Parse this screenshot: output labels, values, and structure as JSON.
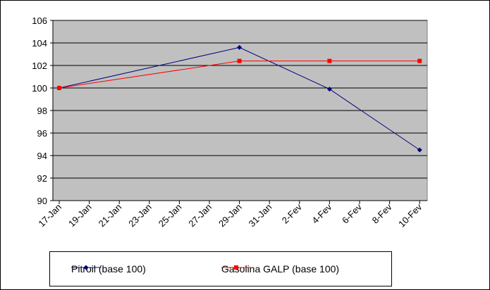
{
  "chart_data": {
    "type": "line",
    "title": "",
    "xlabel": "",
    "ylabel": "",
    "x_ticks": [
      "17-Jan",
      "19-Jan",
      "21-Jan",
      "23-Jan",
      "25-Jan",
      "27-Jan",
      "29-Jan",
      "31-Jan",
      "2-Fev",
      "4-Fev",
      "6-Fev",
      "8-Fev",
      "10-Fev"
    ],
    "y_ticks": [
      "90",
      "92",
      "94",
      "96",
      "98",
      "100",
      "102",
      "104",
      "106"
    ],
    "ylim": [
      90,
      106
    ],
    "grid": "horizontal",
    "plot_background": "#C0C0C0",
    "legend_position": "bottom",
    "series": [
      {
        "name": "Pitroil (base 100)",
        "color": "#000080",
        "marker": "diamond",
        "points": [
          {
            "x_index": 0,
            "y": 100.0
          },
          {
            "x_index": 6,
            "y": 103.6
          },
          {
            "x_index": 9,
            "y": 99.9
          },
          {
            "x_index": 12,
            "y": 94.5
          }
        ]
      },
      {
        "name": "Gasolina GALP (base 100)",
        "color": "#FF0000",
        "marker": "square",
        "points": [
          {
            "x_index": 0,
            "y": 100.0
          },
          {
            "x_index": 6,
            "y": 102.4
          },
          {
            "x_index": 9,
            "y": 102.4
          },
          {
            "x_index": 12,
            "y": 102.4
          }
        ]
      }
    ]
  }
}
